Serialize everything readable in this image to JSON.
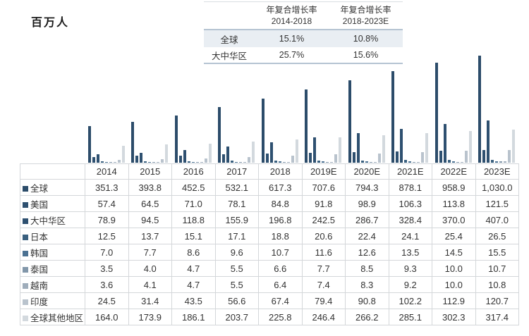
{
  "unit_label": "百万人",
  "cagr_table": {
    "headers": [
      {
        "line1": "年复合增长率",
        "line2": "2014-2018"
      },
      {
        "line1": "年复合增长率",
        "line2": "2018-2023E"
      }
    ],
    "rows": [
      {
        "label": "全球",
        "values": [
          "15.1%",
          "10.8%"
        ],
        "highlight": true
      },
      {
        "label": "大中华区",
        "values": [
          "25.7%",
          "15.6%"
        ],
        "highlight": false
      }
    ]
  },
  "chart_data": {
    "type": "bar",
    "title": "",
    "ylabel": "百万人",
    "xlabel": "",
    "ylim": [
      0,
      1030
    ],
    "grid": false,
    "legend_position": "table-left-column",
    "categories": [
      "2014",
      "2015",
      "2016",
      "2017",
      "2018",
      "2019E",
      "2020E",
      "2021E",
      "2022E",
      "2023E"
    ],
    "series": [
      {
        "name": "全球",
        "color": "#2c4c6a",
        "values": [
          351.3,
          393.8,
          452.5,
          532.1,
          617.3,
          707.6,
          794.3,
          878.1,
          958.9,
          1030.0
        ]
      },
      {
        "name": "美国",
        "color": "#2e5070",
        "values": [
          57.4,
          64.5,
          71.0,
          78.1,
          84.8,
          91.8,
          98.9,
          106.3,
          113.8,
          121.5
        ]
      },
      {
        "name": "大中华区",
        "color": "#2e5070",
        "values": [
          78.9,
          94.5,
          118.8,
          155.9,
          196.8,
          242.5,
          286.7,
          328.4,
          370.0,
          407.0
        ]
      },
      {
        "name": "日本",
        "color": "#3a607f",
        "values": [
          12.5,
          13.7,
          15.1,
          17.1,
          18.8,
          20.6,
          22.4,
          24.1,
          25.4,
          26.5
        ]
      },
      {
        "name": "韩国",
        "color": "#4b7192",
        "values": [
          7.0,
          7.7,
          8.6,
          9.6,
          10.7,
          11.6,
          12.6,
          13.5,
          14.5,
          15.5
        ]
      },
      {
        "name": "泰国",
        "color": "#8297aa",
        "values": [
          3.5,
          4.0,
          4.7,
          5.5,
          6.6,
          7.7,
          8.5,
          9.3,
          10.0,
          10.7
        ]
      },
      {
        "name": "越南",
        "color": "#9fadbb",
        "values": [
          3.6,
          4.1,
          4.7,
          5.5,
          6.4,
          7.4,
          8.3,
          9.2,
          10.0,
          10.8
        ]
      },
      {
        "name": "印度",
        "color": "#b9c3cd",
        "values": [
          24.5,
          31.4,
          43.5,
          56.6,
          67.4,
          79.4,
          90.8,
          102.2,
          112.9,
          120.7
        ]
      },
      {
        "name": "全球其他地区",
        "color": "#d3d9de",
        "values": [
          164.0,
          173.9,
          186.1,
          203.7,
          225.8,
          246.4,
          266.2,
          285.1,
          302.3,
          317.4
        ]
      }
    ]
  },
  "main_table": {
    "rows": [
      {
        "label": "全球",
        "values": [
          "351.3",
          "393.8",
          "452.5",
          "532.1",
          "617.3",
          "707.6",
          "794.3",
          "878.1",
          "958.9",
          "1,030.0"
        ]
      },
      {
        "label": "美国",
        "values": [
          "57.4",
          "64.5",
          "71.0",
          "78.1",
          "84.8",
          "91.8",
          "98.9",
          "106.3",
          "113.8",
          "121.5"
        ]
      },
      {
        "label": "大中华区",
        "values": [
          "78.9",
          "94.5",
          "118.8",
          "155.9",
          "196.8",
          "242.5",
          "286.7",
          "328.4",
          "370.0",
          "407.0"
        ]
      },
      {
        "label": "日本",
        "values": [
          "12.5",
          "13.7",
          "15.1",
          "17.1",
          "18.8",
          "20.6",
          "22.4",
          "24.1",
          "25.4",
          "26.5"
        ]
      },
      {
        "label": "韩国",
        "values": [
          "7.0",
          "7.7",
          "8.6",
          "9.6",
          "10.7",
          "11.6",
          "12.6",
          "13.5",
          "14.5",
          "15.5"
        ]
      },
      {
        "label": "泰国",
        "values": [
          "3.5",
          "4.0",
          "4.7",
          "5.5",
          "6.6",
          "7.7",
          "8.5",
          "9.3",
          "10.0",
          "10.7"
        ]
      },
      {
        "label": "越南",
        "values": [
          "3.6",
          "4.1",
          "4.7",
          "5.5",
          "6.4",
          "7.4",
          "8.3",
          "9.2",
          "10.0",
          "10.8"
        ]
      },
      {
        "label": "印度",
        "values": [
          "24.5",
          "31.4",
          "43.5",
          "56.6",
          "67.4",
          "79.4",
          "90.8",
          "102.2",
          "112.9",
          "120.7"
        ]
      },
      {
        "label": "全球其他地区",
        "values": [
          "164.0",
          "173.9",
          "186.1",
          "203.7",
          "225.8",
          "246.4",
          "266.2",
          "285.1",
          "302.3",
          "317.4"
        ]
      }
    ]
  }
}
